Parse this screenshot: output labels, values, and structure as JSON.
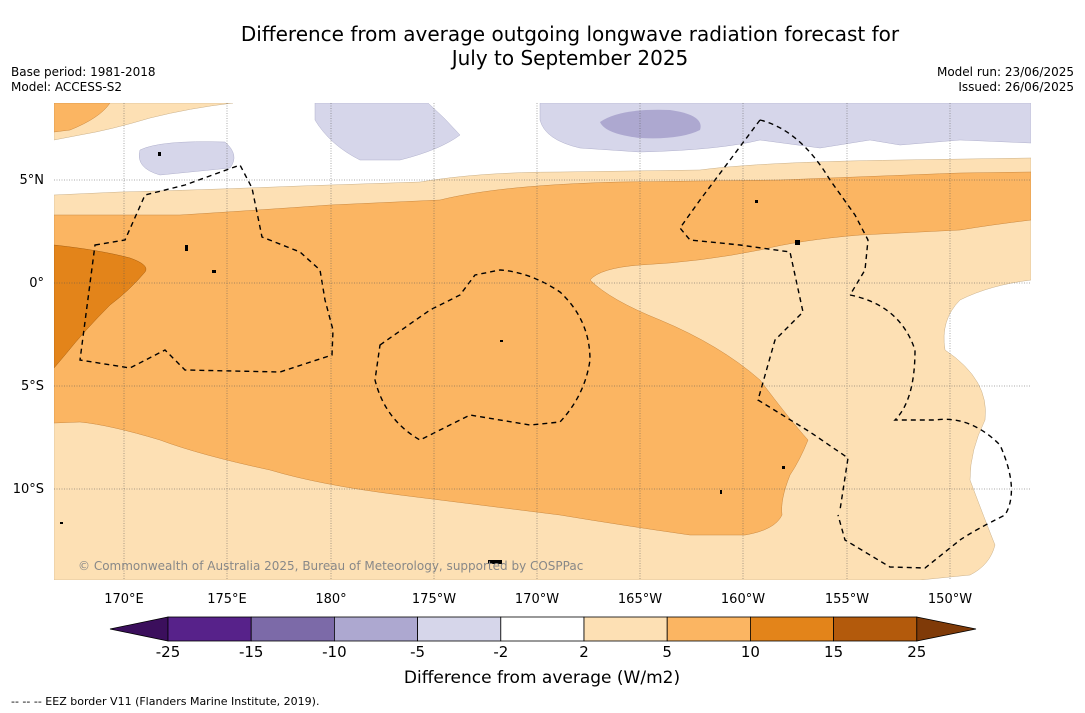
{
  "title_line1": "Difference from average outgoing longwave radiation forecast for",
  "title_line2": "July to September 2025",
  "base_period": "Base period: 1981-2018",
  "model": "Model: ACCESS-S2",
  "model_run": "Model run: 23/06/2025",
  "issued": "Issued: 26/06/2025",
  "copyright": "© Commonwealth of Australia 2025, Bureau of Meteorology, supported by COSPPac",
  "lon_labels": [
    "170°E",
    "175°E",
    "180°",
    "175°W",
    "170°W",
    "165°W",
    "160°W",
    "155°W",
    "150°W"
  ],
  "lat_labels": [
    "5°N",
    "0°",
    "5°S",
    "10°S"
  ],
  "colorbar": {
    "label": "Difference from average (W/m2)",
    "ticks": [
      "-25",
      "-15",
      "-10",
      "-5",
      "-2",
      "2",
      "5",
      "10",
      "15",
      "25"
    ],
    "colors": [
      "#3b0f5c",
      "#57228a",
      "#7c6aa8",
      "#ada8d0",
      "#d6d6ea",
      "#ffffff",
      "#fde0b4",
      "#fbb562",
      "#e3841a",
      "#b35a0c",
      "#7f3a08"
    ]
  },
  "footnote": "--  --  -- EEZ border V11 (Flanders Marine Institute, 2019)."
}
